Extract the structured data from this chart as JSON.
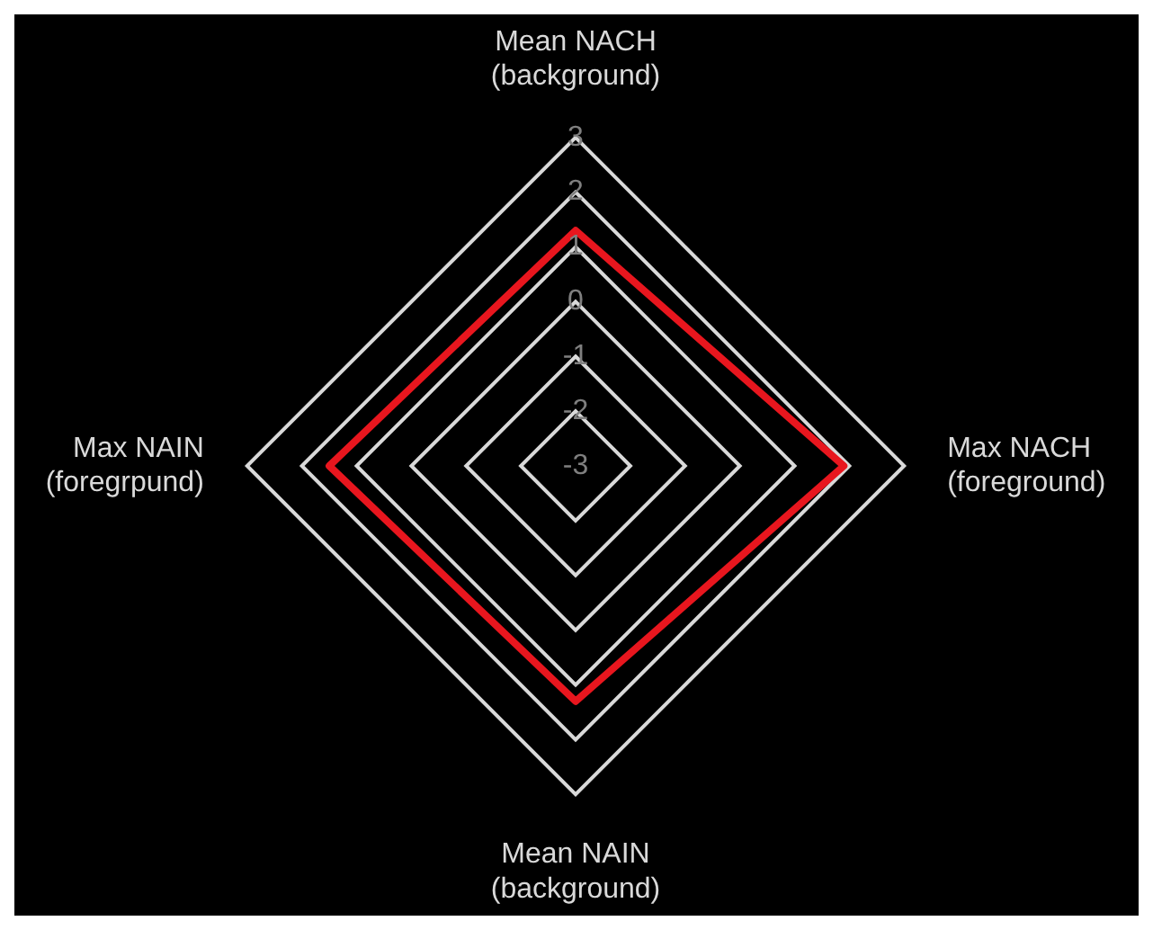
{
  "chart_data": {
    "type": "radar",
    "categories": [
      "Mean NACH\n(background)",
      "Max NACH\n(foreground)",
      "Mean NAIN\n(background)",
      "Max NAIN\n(foregrpund)"
    ],
    "series": [
      {
        "color": "#e8161e",
        "values": [
          1.3,
          1.9,
          1.3,
          1.5
        ]
      }
    ],
    "ylim": [
      -3,
      3
    ],
    "yticks": [
      -3,
      -2,
      -1,
      0,
      1,
      2,
      3
    ],
    "grid": true,
    "legend": false,
    "marker": "none"
  }
}
